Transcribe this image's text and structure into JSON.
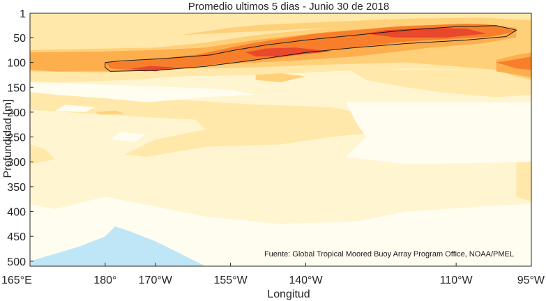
{
  "chart_data": {
    "type": "heatmap",
    "title": "Promedio ultimos 5 dias - Junio 30 de 2018",
    "xlabel": "Longitud",
    "ylabel": "Profundidad [m]",
    "source": "Fuente: Global Tropical Moored Buoy Array Program Office, NOAA/PMEL",
    "x_ticks": [
      {
        "value": 165,
        "label": "165°E"
      },
      {
        "value": 180,
        "label": "180°"
      },
      {
        "value": 190,
        "label": "170°W"
      },
      {
        "value": 205,
        "label": "155°W"
      },
      {
        "value": 220,
        "label": "140°W"
      },
      {
        "value": 250,
        "label": "110°W"
      },
      {
        "value": 265,
        "label": "95°W"
      }
    ],
    "y_ticks": [
      {
        "value": 1,
        "label": "1"
      },
      {
        "value": 50,
        "label": "50"
      },
      {
        "value": 100,
        "label": "100"
      },
      {
        "value": 150,
        "label": "150"
      },
      {
        "value": 200,
        "label": "200"
      },
      {
        "value": 250,
        "label": "250"
      },
      {
        "value": 300,
        "label": "300"
      },
      {
        "value": 350,
        "label": "350"
      },
      {
        "value": 400,
        "label": "400"
      },
      {
        "value": 450,
        "label": "450"
      },
      {
        "value": 500,
        "label": "500"
      }
    ],
    "xlim": [
      165,
      265
    ],
    "ylim": [
      1,
      510
    ],
    "y_reversed": true,
    "grid": false,
    "level_colors": [
      "#bfe6f7",
      "#fffdf0",
      "#fff5d1",
      "#ffe8aa",
      "#ffd07a",
      "#fdae4d",
      "#f77f2b",
      "#e8482b"
    ],
    "regions": [
      {
        "name": "band-0",
        "level": 2,
        "polygon": [
          [
            165,
            1
          ],
          [
            265,
            1
          ],
          [
            265,
            130
          ],
          [
            165,
            130
          ]
        ]
      },
      {
        "name": "upper-mid",
        "level": 3,
        "polygon": [
          [
            165,
            1
          ],
          [
            265,
            1
          ],
          [
            265,
            115
          ],
          [
            240,
            112
          ],
          [
            225,
            118
          ],
          [
            212,
            125
          ],
          [
            195,
            128
          ],
          [
            185,
            135
          ],
          [
            172,
            140
          ],
          [
            165,
            138
          ]
        ]
      },
      {
        "name": "upper-tongue",
        "level": 3,
        "polygon": [
          [
            172,
            1
          ],
          [
            200,
            1
          ],
          [
            200,
            15
          ],
          [
            195,
            25
          ],
          [
            188,
            20
          ],
          [
            180,
            18
          ],
          [
            172,
            22
          ]
        ]
      },
      {
        "name": "mid-lower",
        "level": 3,
        "polygon": [
          [
            165,
            140
          ],
          [
            175,
            150
          ],
          [
            180,
            160
          ],
          [
            195,
            175
          ],
          [
            210,
            185
          ],
          [
            225,
            190
          ],
          [
            230,
            200
          ],
          [
            235,
            240
          ],
          [
            225,
            250
          ],
          [
            215,
            265
          ],
          [
            200,
            270
          ],
          [
            188,
            290
          ],
          [
            184,
            285
          ],
          [
            190,
            255
          ],
          [
            200,
            235
          ],
          [
            198,
            215
          ],
          [
            188,
            210
          ],
          [
            180,
            205
          ],
          [
            172,
            200
          ],
          [
            165,
            195
          ]
        ]
      },
      {
        "name": "mid-lower-right",
        "level": 3,
        "polygon": [
          [
            228,
            110
          ],
          [
            240,
            115
          ],
          [
            265,
            112
          ],
          [
            265,
            165
          ],
          [
            258,
            170
          ],
          [
            247,
            160
          ],
          [
            240,
            150
          ],
          [
            232,
            135
          ]
        ]
      },
      {
        "name": "lower-left",
        "level": 3,
        "polygon": [
          [
            165,
            265
          ],
          [
            168,
            275
          ],
          [
            170,
            295
          ],
          [
            165,
            305
          ]
        ]
      },
      {
        "name": "lower-right-edge",
        "level": 3,
        "polygon": [
          [
            262,
            300
          ],
          [
            265,
            295
          ],
          [
            265,
            380
          ],
          [
            262,
            370
          ]
        ]
      },
      {
        "name": "pale-1",
        "level": 1,
        "polygon": [
          [
            165,
            140
          ],
          [
            195,
            150
          ],
          [
            205,
            155
          ],
          [
            210,
            165
          ],
          [
            200,
            170
          ],
          [
            195,
            175
          ],
          [
            188,
            180
          ],
          [
            180,
            172
          ],
          [
            170,
            165
          ],
          [
            165,
            160
          ]
        ]
      },
      {
        "name": "pale-2",
        "level": 1,
        "polygon": [
          [
            172,
            185
          ],
          [
            178,
            190
          ],
          [
            176,
            200
          ],
          [
            170,
            198
          ]
        ]
      },
      {
        "name": "pale-3",
        "level": 1,
        "polygon": [
          [
            165,
            385
          ],
          [
            170,
            395
          ],
          [
            180,
            370
          ],
          [
            185,
            380
          ],
          [
            200,
            410
          ],
          [
            215,
            425
          ],
          [
            230,
            420
          ],
          [
            240,
            400
          ],
          [
            255,
            390
          ],
          [
            265,
            385
          ],
          [
            265,
            510
          ],
          [
            165,
            510
          ]
        ]
      },
      {
        "name": "pale-4",
        "level": 1,
        "polygon": [
          [
            228,
            180
          ],
          [
            265,
            180
          ],
          [
            265,
            300
          ],
          [
            240,
            305
          ],
          [
            228,
            290
          ],
          [
            232,
            250
          ],
          [
            230,
            220
          ]
        ]
      },
      {
        "name": "pale-5",
        "level": 1,
        "polygon": [
          [
            183,
            240
          ],
          [
            188,
            245
          ],
          [
            186,
            260
          ],
          [
            181,
            255
          ]
        ]
      },
      {
        "name": "white-left",
        "level": 0,
        "polygon": [
          [
            165,
            500
          ],
          [
            175,
            470
          ],
          [
            180,
            450
          ],
          [
            182,
            430
          ],
          [
            185,
            440
          ],
          [
            190,
            460
          ],
          [
            196,
            490
          ],
          [
            200,
            510
          ],
          [
            165,
            510
          ]
        ]
      },
      {
        "name": "blue-spot",
        "level": 0,
        "polygon": [
          [
            179,
            500
          ],
          [
            181,
            495
          ],
          [
            183,
            505
          ],
          [
            180,
            510
          ]
        ]
      },
      {
        "name": "core-band-low",
        "level": 4,
        "polygon": [
          [
            165,
            75
          ],
          [
            180,
            72
          ],
          [
            190,
            70
          ],
          [
            200,
            60
          ],
          [
            210,
            45
          ],
          [
            225,
            30
          ],
          [
            240,
            22
          ],
          [
            255,
            20
          ],
          [
            265,
            22
          ],
          [
            265,
            135
          ],
          [
            262,
            128
          ],
          [
            258,
            115
          ],
          [
            250,
            108
          ],
          [
            240,
            100
          ],
          [
            225,
            104
          ],
          [
            210,
            110
          ],
          [
            200,
            112
          ],
          [
            190,
            115
          ],
          [
            180,
            120
          ],
          [
            165,
            118
          ]
        ]
      },
      {
        "name": "core-band-upper",
        "level": 4,
        "polygon": [
          [
            195,
            45
          ],
          [
            205,
            30
          ],
          [
            210,
            25
          ],
          [
            225,
            18
          ],
          [
            240,
            12
          ],
          [
            255,
            10
          ],
          [
            265,
            15
          ],
          [
            265,
            40
          ],
          [
            255,
            30
          ],
          [
            240,
            25
          ],
          [
            225,
            30
          ]
        ]
      },
      {
        "name": "core-band-mid",
        "level": 5,
        "polygon": [
          [
            165,
            80
          ],
          [
            180,
            78
          ],
          [
            190,
            75
          ],
          [
            200,
            70
          ],
          [
            210,
            55
          ],
          [
            225,
            38
          ],
          [
            240,
            26
          ],
          [
            255,
            22
          ],
          [
            262,
            30
          ],
          [
            262,
            50
          ],
          [
            255,
            62
          ],
          [
            245,
            70
          ],
          [
            230,
            88
          ],
          [
            220,
            95
          ],
          [
            205,
            103
          ],
          [
            193,
            112
          ],
          [
            183,
            118
          ],
          [
            170,
            118
          ],
          [
            165,
            115
          ]
        ]
      },
      {
        "name": "core-band-lower-right",
        "level": 5,
        "polygon": [
          [
            258,
            95
          ],
          [
            262,
            85
          ],
          [
            265,
            80
          ],
          [
            265,
            130
          ],
          [
            258,
            118
          ]
        ]
      },
      {
        "name": "core-contour-fill",
        "level": 6,
        "polygon": [
          [
            180,
            100
          ],
          [
            186,
            97
          ],
          [
            198,
            85
          ],
          [
            205,
            70
          ],
          [
            210,
            60
          ],
          [
            222,
            42
          ],
          [
            238,
            28
          ],
          [
            252,
            22
          ],
          [
            258,
            25
          ],
          [
            262,
            38
          ],
          [
            257,
            48
          ],
          [
            240,
            58
          ],
          [
            225,
            75
          ],
          [
            215,
            90
          ],
          [
            205,
            100
          ],
          [
            195,
            112
          ],
          [
            188,
            118
          ],
          [
            181,
            112
          ]
        ]
      },
      {
        "name": "hot-spot-1",
        "level": 7,
        "polygon": [
          [
            208,
            80
          ],
          [
            212,
            72
          ],
          [
            218,
            70
          ],
          [
            225,
            78
          ],
          [
            215,
            88
          ],
          [
            210,
            88
          ]
        ]
      },
      {
        "name": "hot-spot-2",
        "level": 7,
        "polygon": [
          [
            232,
            42
          ],
          [
            236,
            35
          ],
          [
            245,
            30
          ],
          [
            252,
            32
          ],
          [
            256,
            42
          ],
          [
            248,
            50
          ],
          [
            238,
            50
          ]
        ]
      },
      {
        "name": "hot-spot-3",
        "level": 7,
        "polygon": [
          [
            185,
            113
          ],
          [
            189,
            107
          ],
          [
            194,
            110
          ],
          [
            190,
            118
          ]
        ]
      },
      {
        "name": "hot-spot-right",
        "level": 6,
        "polygon": [
          [
            258,
            100
          ],
          [
            263,
            92
          ],
          [
            265,
            88
          ],
          [
            265,
            115
          ],
          [
            262,
            112
          ]
        ]
      },
      {
        "name": "low-patch",
        "level": 4,
        "polygon": [
          [
            210,
            125
          ],
          [
            215,
            122
          ],
          [
            220,
            128
          ],
          [
            215,
            140
          ],
          [
            210,
            135
          ]
        ]
      },
      {
        "name": "low-patch-2",
        "level": 4,
        "polygon": [
          [
            178,
            200
          ],
          [
            182,
            197
          ],
          [
            184,
            203
          ],
          [
            179,
            205
          ]
        ]
      }
    ],
    "contour": [
      [
        180,
        100
      ],
      [
        183,
        97
      ],
      [
        192,
        92
      ],
      [
        201,
        85
      ],
      [
        206,
        75
      ],
      [
        212,
        65
      ],
      [
        220,
        55
      ],
      [
        230,
        45
      ],
      [
        240,
        35
      ],
      [
        250,
        28
      ],
      [
        258,
        26
      ],
      [
        262,
        35
      ],
      [
        260,
        48
      ],
      [
        252,
        55
      ],
      [
        240,
        62
      ],
      [
        230,
        70
      ],
      [
        220,
        80
      ],
      [
        210,
        95
      ],
      [
        200,
        108
      ],
      [
        190,
        116
      ],
      [
        181,
        118
      ],
      [
        180,
        110
      ],
      [
        180,
        100
      ]
    ]
  }
}
